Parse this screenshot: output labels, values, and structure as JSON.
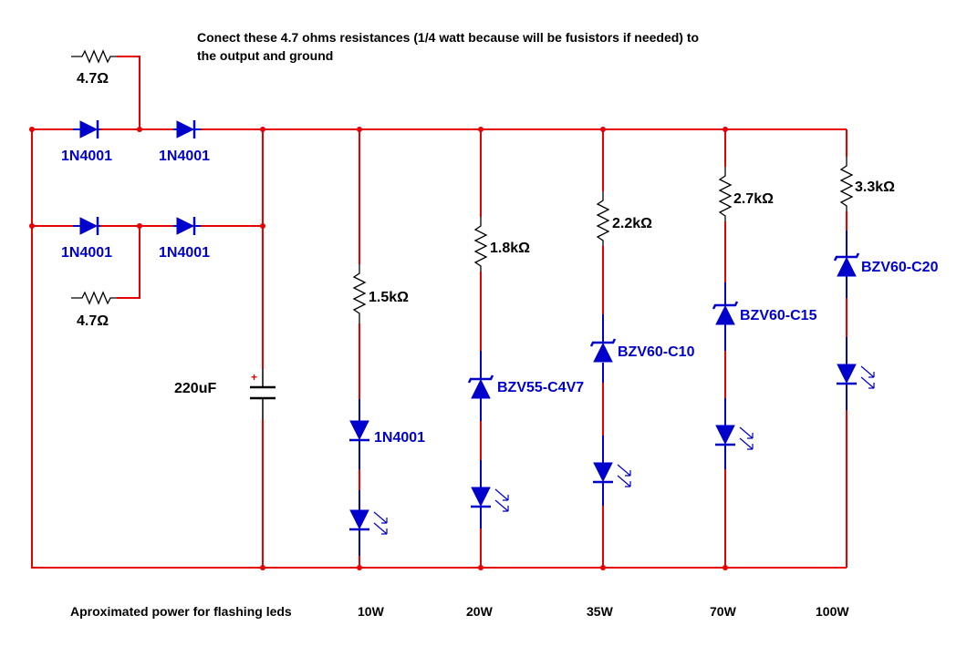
{
  "note": {
    "line1": "Conect these 4.7 ohms resistances (1/4 watt because will be fusistors if needed) to",
    "line2": "the output and ground"
  },
  "bridge": {
    "diode_label": "1N4001",
    "fuse_resistor_label": "4.7Ω"
  },
  "capacitor": {
    "label": "220uF",
    "polarity": "+"
  },
  "branches": [
    {
      "resistor": "1.5kΩ",
      "series_part": "1N4001",
      "power": "10W"
    },
    {
      "resistor": "1.8kΩ",
      "series_part": "BZV55-C4V7",
      "power": "20W"
    },
    {
      "resistor": "2.2kΩ",
      "series_part": "BZV60-C10",
      "power": "35W"
    },
    {
      "resistor": "2.7kΩ",
      "series_part": "BZV60-C15",
      "power": "70W"
    },
    {
      "resistor": "3.3kΩ",
      "series_part": "BZV60-C20",
      "power": "100W"
    }
  ],
  "footer": {
    "label": "Aproximated power for flashing leds"
  },
  "colors": {
    "wire": "#e60000",
    "component": "#0000cc",
    "text": "#000000",
    "background": "#ffffff"
  }
}
